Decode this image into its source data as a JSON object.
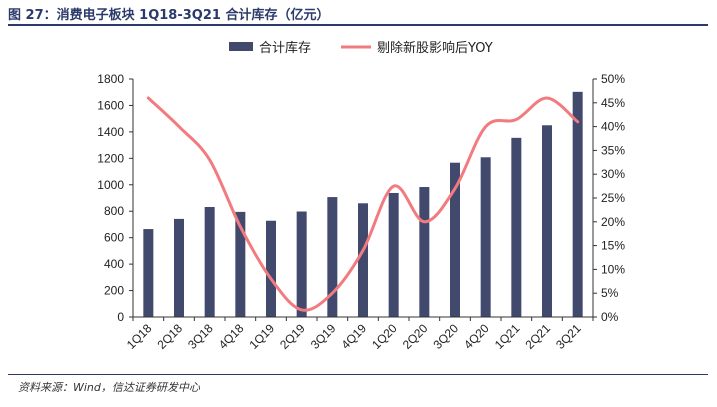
{
  "header": {
    "title": "图 27：消费电子板块 1Q18-3Q21 合计库存（亿元）"
  },
  "footer": {
    "source": "资料来源：Wind，信达证券研发中心"
  },
  "colors": {
    "bar": "#414a6d",
    "line": "#f27b80",
    "accent": "#2b3a6b"
  },
  "chart_data": {
    "type": "bar",
    "categories": [
      "1Q18",
      "2Q18",
      "3Q18",
      "4Q18",
      "1Q19",
      "2Q19",
      "3Q19",
      "4Q19",
      "1Q20",
      "2Q20",
      "3Q20",
      "4Q20",
      "1Q21",
      "2Q21",
      "3Q21"
    ],
    "series": [
      {
        "name": "合计库存",
        "type": "bar",
        "axis": "left",
        "values": [
          665,
          742,
          832,
          795,
          728,
          798,
          907,
          860,
          938,
          983,
          1167,
          1208,
          1355,
          1450,
          1703
        ]
      },
      {
        "name": "剔除新股影响后YOY",
        "type": "line",
        "axis": "right",
        "values": [
          46,
          40,
          33,
          19,
          8,
          1.5,
          5,
          14,
          27.5,
          20,
          27,
          40,
          41.5,
          46,
          41
        ]
      }
    ],
    "ylim": [
      0,
      1800
    ],
    "yticks": [
      "0",
      "200",
      "400",
      "600",
      "800",
      "1000",
      "1200",
      "1400",
      "1600",
      "1800"
    ],
    "y2lim": [
      0,
      50
    ],
    "y2ticks": [
      "0%",
      "5%",
      "10%",
      "15%",
      "20%",
      "25%",
      "30%",
      "35%",
      "40%",
      "45%",
      "50%"
    ],
    "legend": {
      "position": "top",
      "items": [
        "合计库存",
        "剔除新股影响后YOY"
      ]
    },
    "grid": false
  }
}
